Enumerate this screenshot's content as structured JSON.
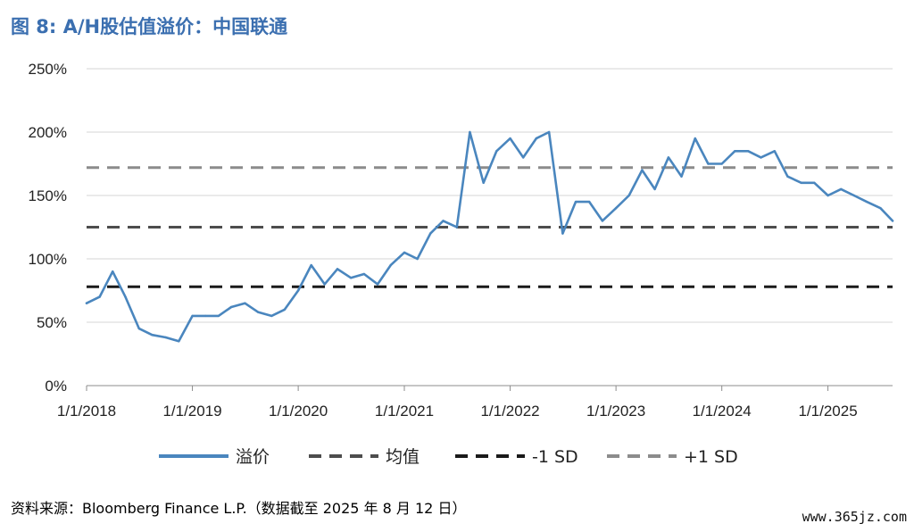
{
  "title": "图 8: A/H股估值溢价：中国联通",
  "source": "资料来源：Bloomberg Finance L.P.（数据截至 2025 年 8 月 12 日）",
  "watermark": "www.365jz.com",
  "colors": {
    "premium": "#4a86be",
    "mean": "#4d4d4d",
    "minus_sd": "#1a1a1a",
    "plus_sd": "#8c8c8c",
    "title": "#3b6fb0"
  },
  "chart_data": {
    "type": "line",
    "title": "A/H股估值溢价：中国联通",
    "ylim": [
      0,
      250
    ],
    "yticks": [
      0,
      50,
      100,
      150,
      200,
      250
    ],
    "ytick_labels": [
      "0%",
      "50%",
      "100%",
      "150%",
      "200%",
      "250%"
    ],
    "xlim": [
      "2018-01-01",
      "2025-08-12"
    ],
    "xticks": [
      "2018-01-01",
      "2019-01-01",
      "2020-01-01",
      "2021-01-01",
      "2022-01-01",
      "2023-01-01",
      "2024-01-01",
      "2025-01-01"
    ],
    "xtick_labels": [
      "1/1/2018",
      "1/1/2019",
      "1/1/2020",
      "1/1/2021",
      "1/1/2022",
      "1/1/2023",
      "1/1/2024",
      "1/1/2025"
    ],
    "grid": true,
    "legend_position": "bottom",
    "reference_lines": [
      {
        "name": "均值",
        "value": 125,
        "style": "dashed"
      },
      {
        "name": "-1 SD",
        "value": 78,
        "style": "dashed"
      },
      {
        "name": "+1 SD",
        "value": 172,
        "style": "dashed"
      }
    ],
    "series": [
      {
        "name": "溢价",
        "points": [
          [
            "2018-01-01",
            65
          ],
          [
            "2018-02-15",
            70
          ],
          [
            "2018-04-01",
            90
          ],
          [
            "2018-05-15",
            70
          ],
          [
            "2018-07-01",
            45
          ],
          [
            "2018-08-15",
            40
          ],
          [
            "2018-10-01",
            38
          ],
          [
            "2018-11-15",
            35
          ],
          [
            "2019-01-01",
            55
          ],
          [
            "2019-02-15",
            55
          ],
          [
            "2019-04-01",
            55
          ],
          [
            "2019-05-15",
            62
          ],
          [
            "2019-07-01",
            65
          ],
          [
            "2019-08-15",
            58
          ],
          [
            "2019-10-01",
            55
          ],
          [
            "2019-11-15",
            60
          ],
          [
            "2020-01-01",
            75
          ],
          [
            "2020-02-15",
            95
          ],
          [
            "2020-04-01",
            80
          ],
          [
            "2020-05-15",
            92
          ],
          [
            "2020-07-01",
            85
          ],
          [
            "2020-08-15",
            88
          ],
          [
            "2020-10-01",
            80
          ],
          [
            "2020-11-15",
            95
          ],
          [
            "2021-01-01",
            105
          ],
          [
            "2021-02-15",
            100
          ],
          [
            "2021-04-01",
            120
          ],
          [
            "2021-05-15",
            130
          ],
          [
            "2021-07-01",
            125
          ],
          [
            "2021-08-15",
            200
          ],
          [
            "2021-10-01",
            160
          ],
          [
            "2021-11-15",
            185
          ],
          [
            "2022-01-01",
            195
          ],
          [
            "2022-02-15",
            180
          ],
          [
            "2022-04-01",
            195
          ],
          [
            "2022-05-15",
            200
          ],
          [
            "2022-07-01",
            120
          ],
          [
            "2022-08-15",
            145
          ],
          [
            "2022-10-01",
            145
          ],
          [
            "2022-11-15",
            130
          ],
          [
            "2023-01-01",
            140
          ],
          [
            "2023-02-15",
            150
          ],
          [
            "2023-04-01",
            170
          ],
          [
            "2023-05-15",
            155
          ],
          [
            "2023-07-01",
            180
          ],
          [
            "2023-08-15",
            165
          ],
          [
            "2023-10-01",
            195
          ],
          [
            "2023-11-15",
            175
          ],
          [
            "2024-01-01",
            175
          ],
          [
            "2024-02-15",
            185
          ],
          [
            "2024-04-01",
            185
          ],
          [
            "2024-05-15",
            180
          ],
          [
            "2024-07-01",
            185
          ],
          [
            "2024-08-15",
            165
          ],
          [
            "2024-10-01",
            160
          ],
          [
            "2024-11-15",
            160
          ],
          [
            "2025-01-01",
            150
          ],
          [
            "2025-02-15",
            155
          ],
          [
            "2025-04-01",
            150
          ],
          [
            "2025-05-15",
            145
          ],
          [
            "2025-07-01",
            140
          ],
          [
            "2025-08-12",
            130
          ]
        ]
      }
    ]
  },
  "legend": [
    {
      "label": "溢价",
      "key": "premium",
      "dash": ""
    },
    {
      "label": "均值",
      "key": "mean",
      "dash": "14 9"
    },
    {
      "label": "-1 SD",
      "key": "minus_sd",
      "dash": "14 9"
    },
    {
      "label": "+1 SD",
      "key": "plus_sd",
      "dash": "14 9"
    }
  ]
}
